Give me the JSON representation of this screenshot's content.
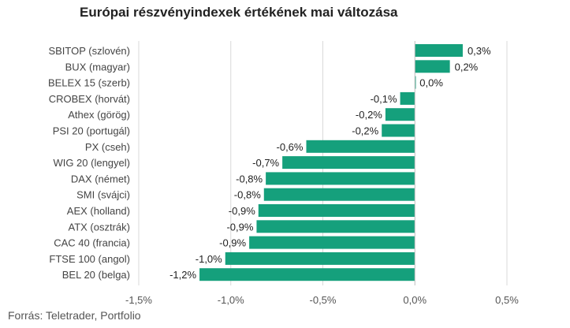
{
  "chart_data": {
    "type": "bar",
    "orientation": "horizontal",
    "title": "Európai részvényindexek értékének mai változása",
    "source": "Forrás: Teletrader, Portfolio",
    "categories": [
      "SBITOP (szlovén)",
      "BUX (magyar)",
      "BELEX 15 (szerb)",
      "CROBEX (horvát)",
      "Athex (görög)",
      "PSI 20 (portugál)",
      "PX (cseh)",
      "WIG 20 (lengyel)",
      "DAX (német)",
      "SMI (svájci)",
      "AEX (holland)",
      "ATX (osztrák)",
      "CAC 40 (francia)",
      "FTSE 100 (angol)",
      "BEL 20 (belga)"
    ],
    "values": [
      0.26,
      0.19,
      0.0,
      -0.08,
      -0.16,
      -0.18,
      -0.59,
      -0.72,
      -0.81,
      -0.82,
      -0.85,
      -0.86,
      -0.9,
      -1.03,
      -1.17
    ],
    "data_labels": [
      "0,3%",
      "0,2%",
      "0,0%",
      "-0,1%",
      "-0,2%",
      "-0,2%",
      "-0,6%",
      "-0,7%",
      "-0,8%",
      "-0,8%",
      "-0,9%",
      "-0,9%",
      "-0,9%",
      "-1,0%",
      "-1,2%"
    ],
    "xlim": [
      -1.5,
      0.5
    ],
    "xticks": [
      -1.5,
      -1.0,
      -0.5,
      0.0,
      0.5
    ],
    "xtick_labels": [
      "-1,5%",
      "-1,0%",
      "-0,5%",
      "0,0%",
      "0,5%"
    ],
    "grid": "vertical",
    "bar_color": "#15a07c",
    "grid_color": "#d9d9d9",
    "text_color": "#444444"
  }
}
